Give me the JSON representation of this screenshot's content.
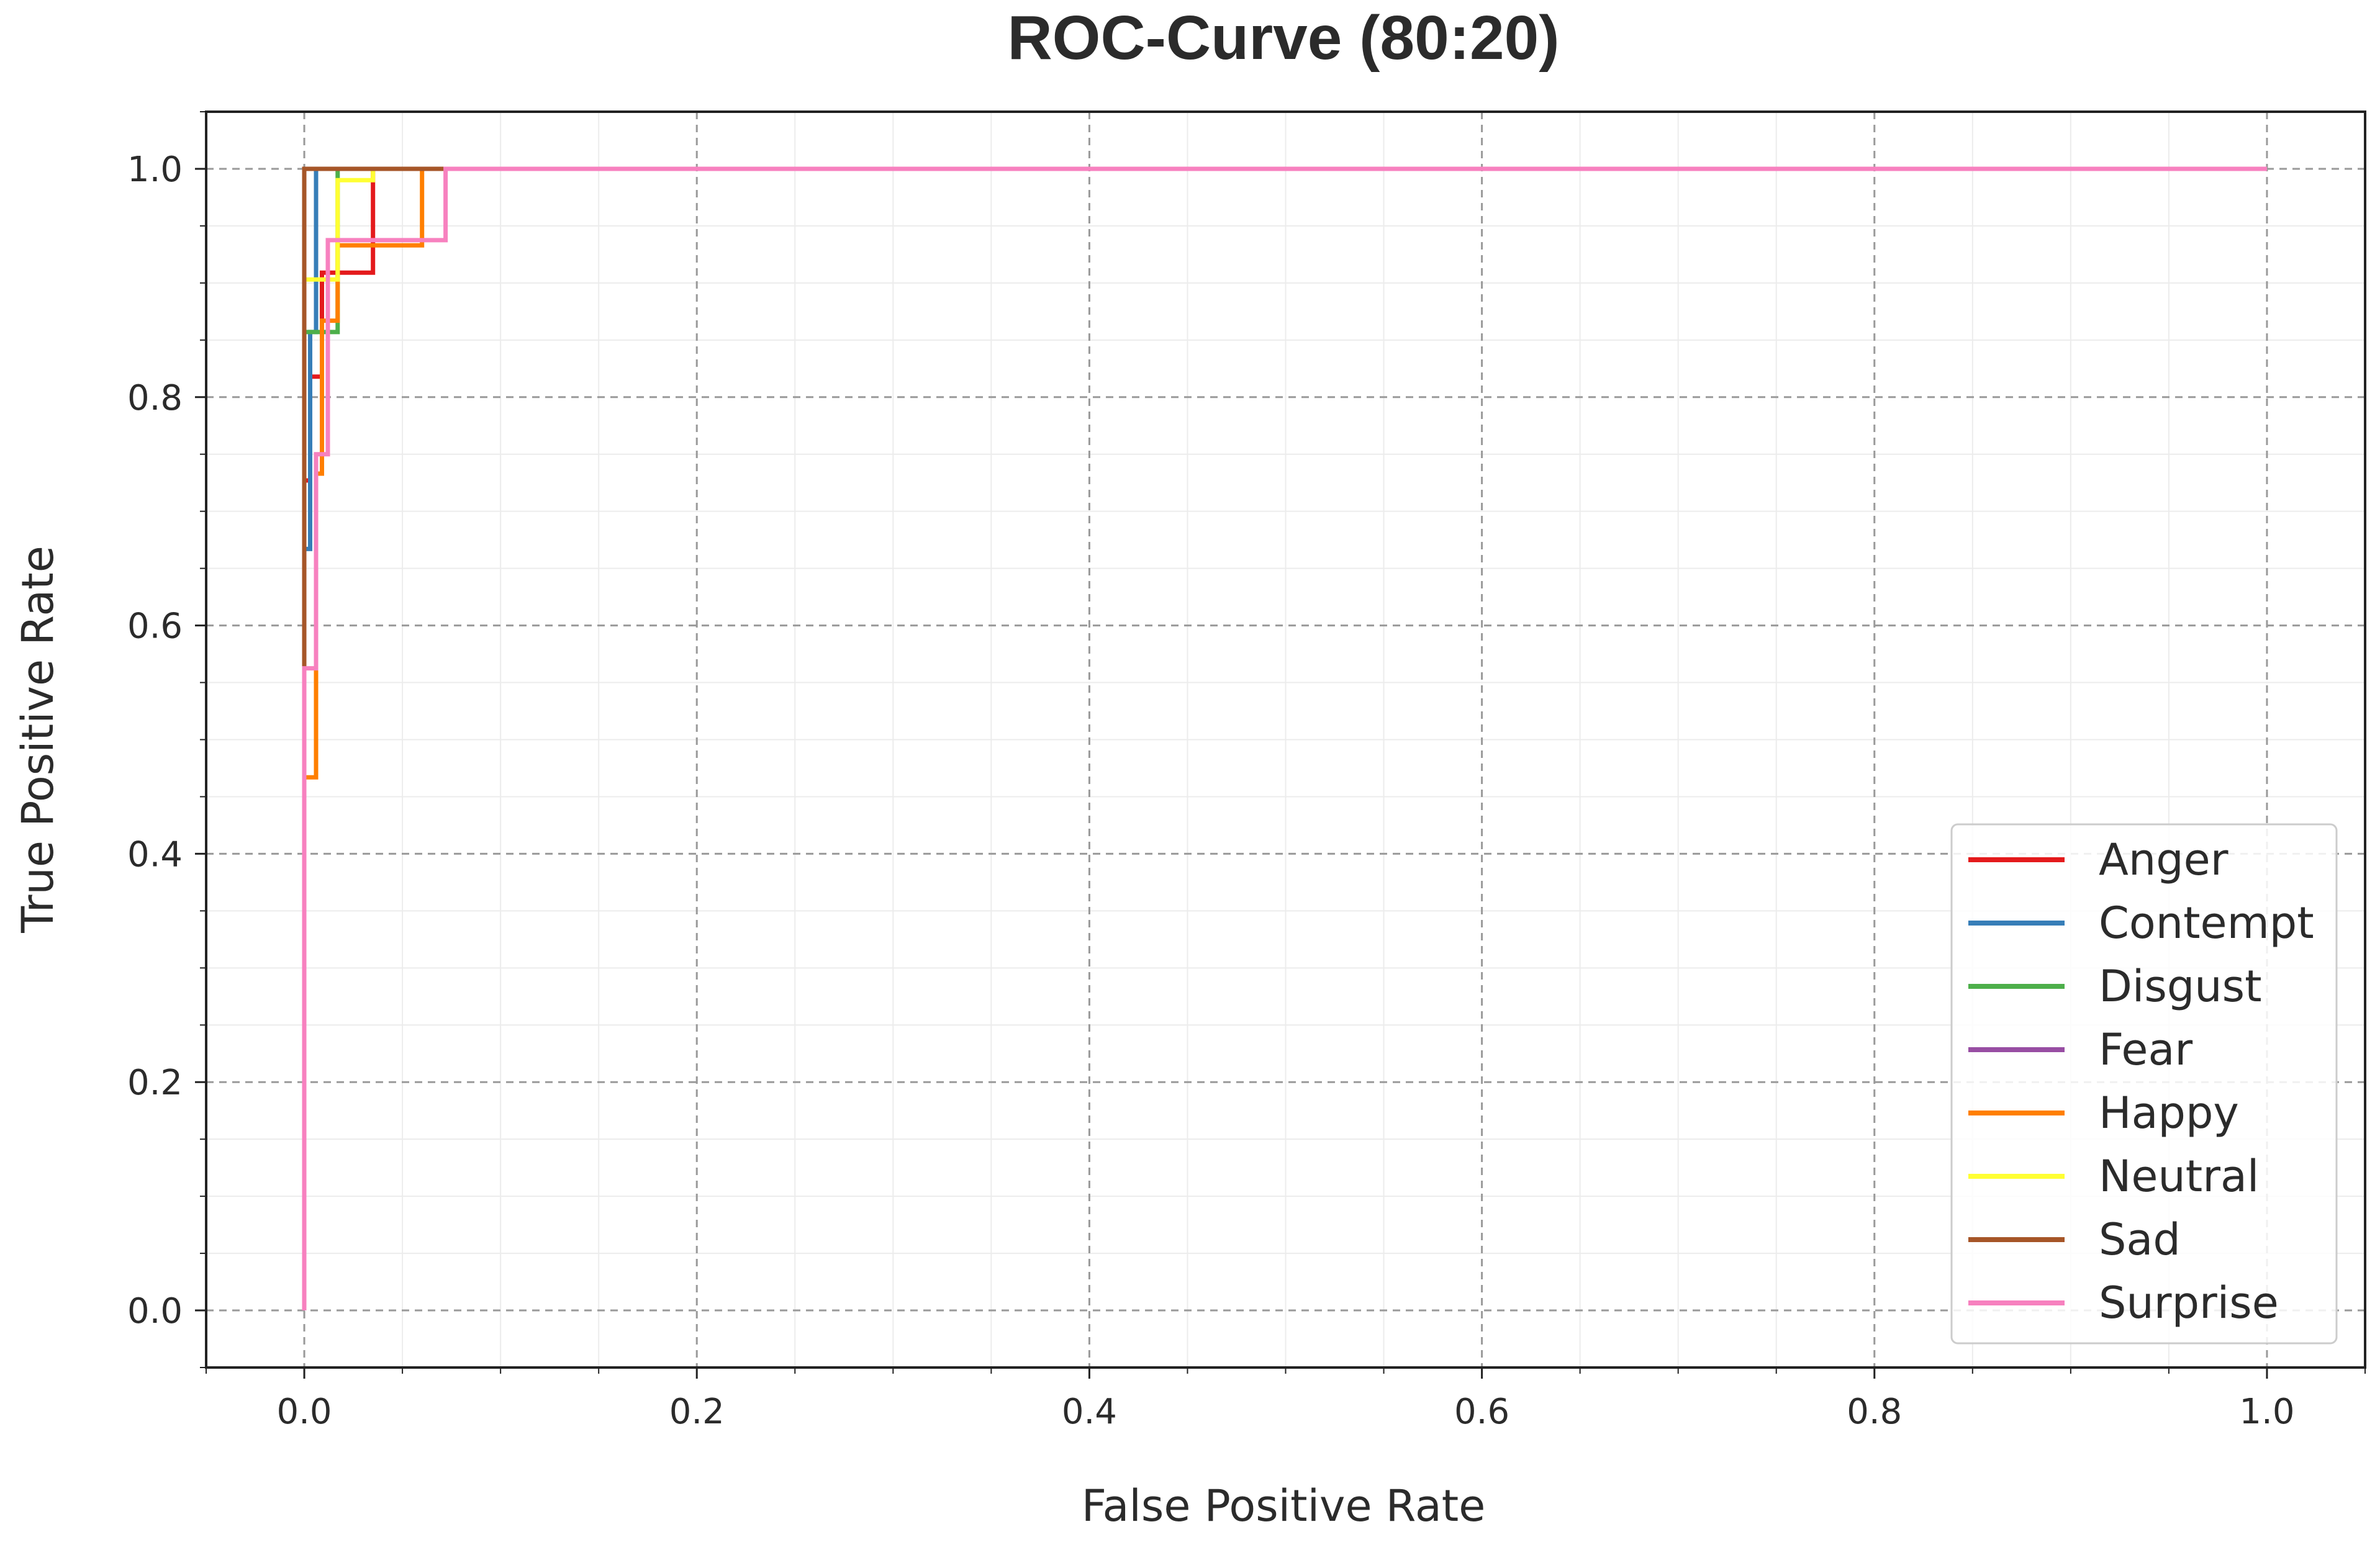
{
  "chart_data": {
    "type": "line",
    "title": "ROC-Curve (80:20)",
    "xlabel": "False Positive Rate",
    "ylabel": "True Positive Rate",
    "xlim": [
      -0.05,
      1.05
    ],
    "ylim": [
      -0.05,
      1.05
    ],
    "xticks": [
      "0.0",
      "0.2",
      "0.4",
      "0.6",
      "0.8",
      "1.0"
    ],
    "yticks": [
      "0.0",
      "0.2",
      "0.4",
      "0.6",
      "0.8",
      "1.0"
    ],
    "grid": true,
    "legend_position": "lower-right",
    "series": [
      {
        "name": "Anger",
        "color": "#e41a1c",
        "x": [
          0,
          0,
          0.003,
          0.003,
          0.009,
          0.009,
          0.035,
          0.035,
          1.0
        ],
        "y": [
          0,
          0.727,
          0.727,
          0.818,
          0.818,
          0.909,
          0.909,
          1.0,
          1.0
        ]
      },
      {
        "name": "Contempt",
        "color": "#377eb8",
        "x": [
          0,
          0,
          0.003,
          0.003,
          0.006,
          0.006,
          1.0
        ],
        "y": [
          0,
          0.667,
          0.667,
          0.857,
          0.857,
          1.0,
          1.0
        ]
      },
      {
        "name": "Disgust",
        "color": "#4daf4a",
        "x": [
          0,
          0,
          0.017,
          0.017,
          1.0
        ],
        "y": [
          0,
          0.857,
          0.857,
          1.0,
          1.0
        ]
      },
      {
        "name": "Fear",
        "color": "#984ea3",
        "x": [
          0,
          0,
          1.0
        ],
        "y": [
          0,
          1.0,
          1.0
        ]
      },
      {
        "name": "Happy",
        "color": "#ff7f00",
        "x": [
          0,
          0,
          0.006,
          0.006,
          0.009,
          0.009,
          0.017,
          0.017,
          0.06,
          0.06,
          1.0
        ],
        "y": [
          0,
          0.467,
          0.467,
          0.733,
          0.733,
          0.867,
          0.867,
          0.933,
          0.933,
          1.0,
          1.0
        ]
      },
      {
        "name": "Neutral",
        "color": "#ffff33",
        "x": [
          0,
          0,
          0.017,
          0.017,
          0.035,
          0.035,
          1.0
        ],
        "y": [
          0,
          0.903,
          0.903,
          0.99,
          0.99,
          1.0,
          1.0
        ]
      },
      {
        "name": "Sad",
        "color": "#a65628",
        "x": [
          0,
          0,
          1.0
        ],
        "y": [
          0,
          1.0,
          1.0
        ]
      },
      {
        "name": "Surprise",
        "color": "#f781bf",
        "x": [
          0,
          0,
          0.006,
          0.006,
          0.012,
          0.012,
          0.072,
          0.072,
          1.0
        ],
        "y": [
          0,
          0.5625,
          0.5625,
          0.75,
          0.75,
          0.9375,
          0.9375,
          1.0,
          1.0
        ]
      }
    ]
  }
}
